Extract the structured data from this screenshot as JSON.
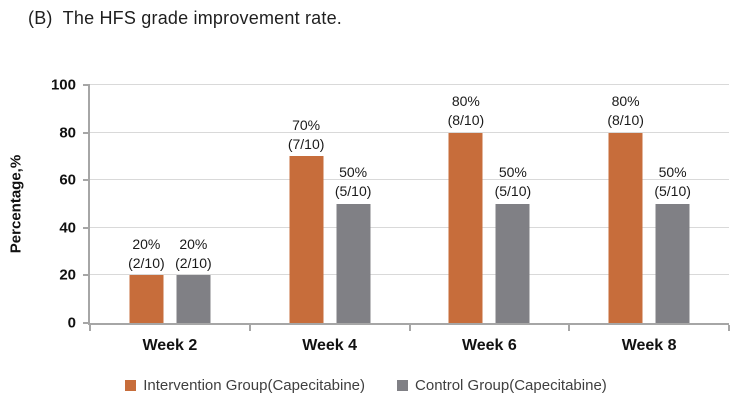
{
  "title": "(B)  The HFS grade improvement rate.",
  "chart_data": {
    "type": "bar",
    "categories": [
      "Week 2",
      "Week 4",
      "Week 6",
      "Week 8"
    ],
    "series": [
      {
        "name": "Intervention Group(Capecitabine)",
        "color": "#C76D3B",
        "values": [
          20,
          70,
          80,
          80
        ],
        "bar_labels": [
          "20%\n(2/10)",
          "70%\n(7/10)",
          "80%\n(8/10)",
          "80%\n(8/10)"
        ]
      },
      {
        "name": "Control Group(Capecitabine)",
        "color": "#808085",
        "values": [
          20,
          50,
          50,
          50
        ],
        "bar_labels": [
          "20%\n(2/10)",
          "50%\n(5/10)",
          "50%\n(5/10)",
          "50%\n(5/10)"
        ]
      }
    ],
    "ylabel": "Percentage,%",
    "yticks": [
      0,
      20,
      40,
      60,
      80,
      100
    ],
    "ylim": [
      0,
      100
    ],
    "grid": true,
    "legend_position": "bottom"
  },
  "colors": {
    "axis": "#A6A6A6",
    "gridline": "#D9D9D9",
    "text": "#111111"
  }
}
